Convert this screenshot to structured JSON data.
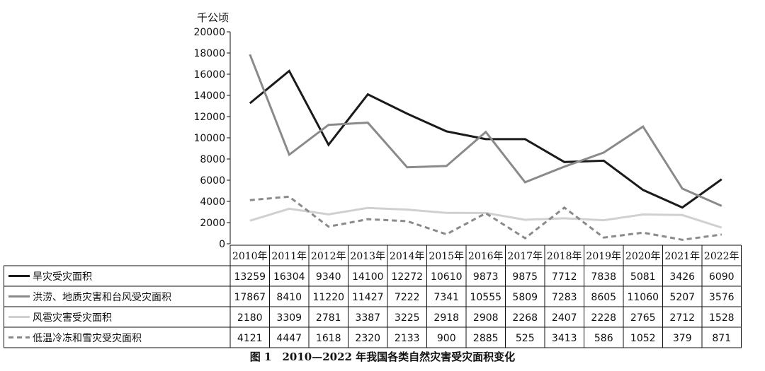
{
  "chart_data": {
    "type": "line",
    "ylabel": "千公顷",
    "ylim": [
      0,
      20000
    ],
    "yticks": [
      0,
      2000,
      4000,
      6000,
      8000,
      10000,
      12000,
      14000,
      16000,
      18000,
      20000
    ],
    "categories": [
      "2010年",
      "2011年",
      "2012年",
      "2013年",
      "2014年",
      "2015年",
      "2016年",
      "2017年",
      "2018年",
      "2019年",
      "2020年",
      "2021年",
      "2022年"
    ],
    "series": [
      {
        "name": "旱灾受灾面积",
        "color": "#1a1a1a",
        "dash": "solid",
        "values": [
          13259,
          16304,
          9340,
          14100,
          12272,
          10610,
          9873,
          9875,
          7712,
          7838,
          5081,
          3426,
          6090
        ]
      },
      {
        "name": "洪涝、地质灾害和台风受灾面积",
        "color": "#8a8a8a",
        "dash": "solid",
        "values": [
          17867,
          8410,
          11220,
          11427,
          7222,
          7341,
          10555,
          5809,
          7283,
          8605,
          11060,
          5207,
          3576
        ]
      },
      {
        "name": "风雹灾害受灾面积",
        "color": "#d0d0d0",
        "dash": "solid",
        "values": [
          2180,
          3309,
          2781,
          3387,
          3225,
          2918,
          2908,
          2268,
          2407,
          2228,
          2765,
          2712,
          1528
        ]
      },
      {
        "name": "低温冷冻和雪灾受灾面积",
        "color": "#8a8a8a",
        "dash": "dashed",
        "values": [
          4121,
          4447,
          1618,
          2320,
          2133,
          900,
          2885,
          525,
          3413,
          586,
          1052,
          379,
          871
        ]
      }
    ],
    "caption": "图 1　2010—2022 年我国各类自然灾害受灾面积变化"
  }
}
